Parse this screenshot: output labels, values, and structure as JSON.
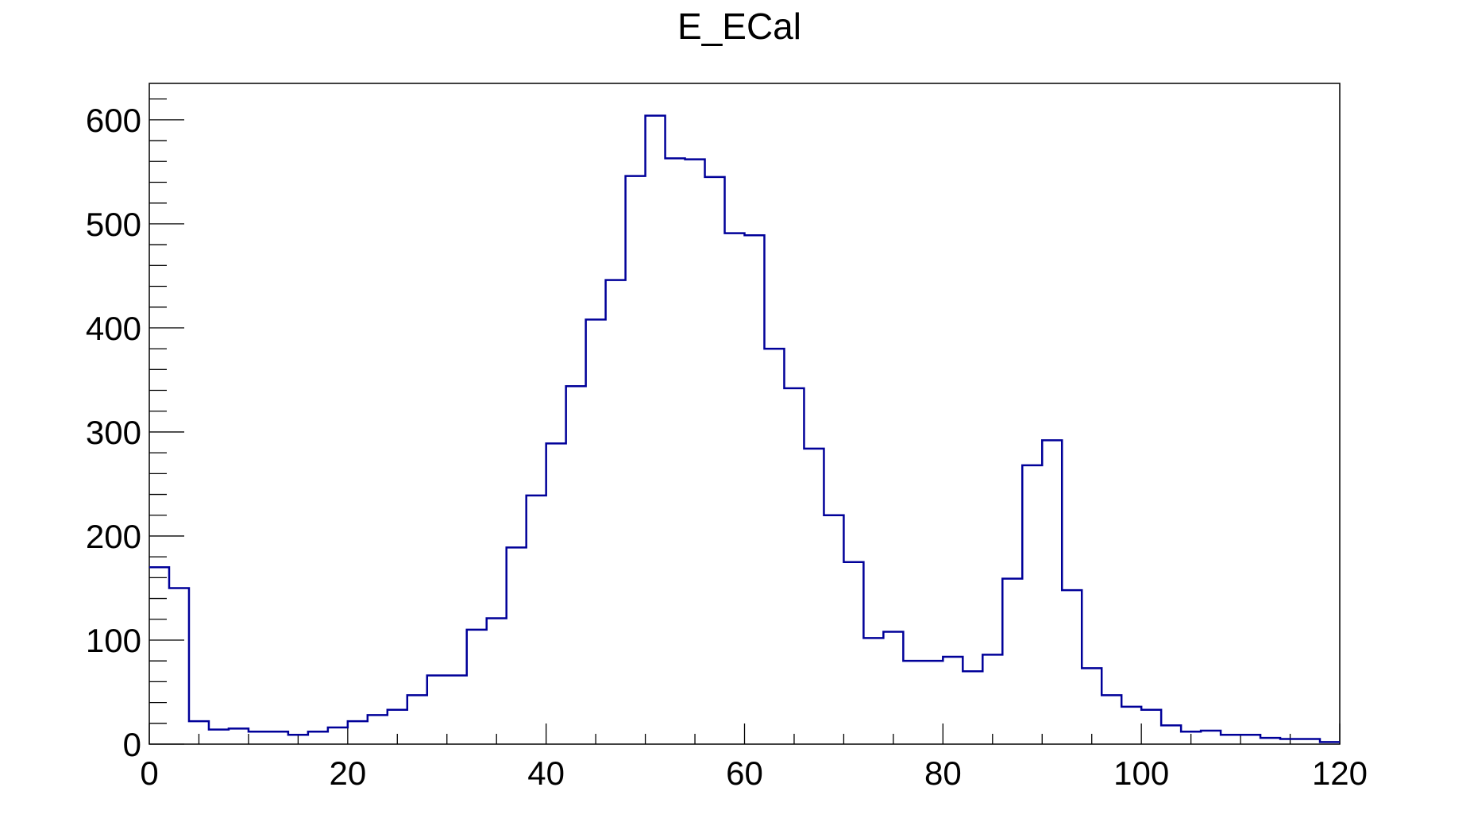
{
  "chart_data": {
    "type": "histogram",
    "title": "E_ECal",
    "xlabel": "",
    "ylabel": "",
    "xlim": [
      0,
      120
    ],
    "ylim": [
      0,
      635
    ],
    "bin_width": 2,
    "x_ticks": [
      0,
      20,
      40,
      60,
      80,
      100,
      120
    ],
    "x_tick_labels": [
      "0",
      "20",
      "40",
      "60",
      "80",
      "100",
      "120"
    ],
    "y_ticks": [
      0,
      100,
      200,
      300,
      400,
      500,
      600
    ],
    "y_tick_labels": [
      "0",
      "100",
      "200",
      "300",
      "400",
      "500",
      "600"
    ],
    "grid": false,
    "legend": "none",
    "line_color": "#000099",
    "bin_edges": [
      0,
      2,
      4,
      6,
      8,
      10,
      12,
      14,
      16,
      18,
      20,
      22,
      24,
      26,
      28,
      30,
      32,
      34,
      36,
      38,
      40,
      42,
      44,
      46,
      48,
      50,
      52,
      54,
      56,
      58,
      60,
      62,
      64,
      66,
      68,
      70,
      72,
      74,
      76,
      78,
      80,
      82,
      84,
      86,
      88,
      90,
      92,
      94,
      96,
      98,
      100,
      102,
      104,
      106,
      108,
      110,
      112,
      114,
      116,
      118,
      120
    ],
    "values": [
      170,
      150,
      22,
      14,
      15,
      12,
      12,
      9,
      12,
      16,
      22,
      28,
      33,
      47,
      66,
      66,
      110,
      121,
      189,
      239,
      289,
      344,
      408,
      446,
      546,
      604,
      563,
      562,
      545,
      491,
      489,
      380,
      342,
      284,
      220,
      175,
      102,
      108,
      80,
      80,
      84,
      70,
      86,
      159,
      268,
      292,
      148,
      73,
      47,
      36,
      33,
      18,
      12,
      13,
      9,
      9,
      6,
      5,
      5,
      2
    ]
  }
}
